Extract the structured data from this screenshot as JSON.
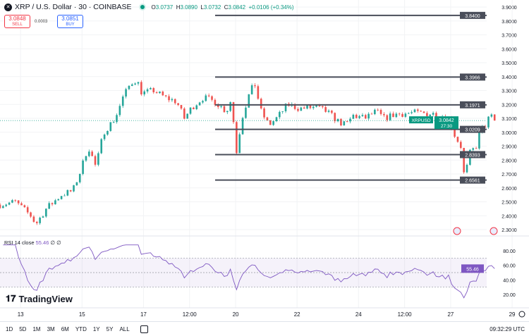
{
  "header": {
    "symbol": "XRP / U.S. Dollar · 30 · COINBASE",
    "open_label": "O",
    "open": "3.0737",
    "high_label": "H",
    "high": "3.0890",
    "low_label": "L",
    "low": "3.0732",
    "close_label": "C",
    "close": "3.0842",
    "change": "+0.0106 (+0.34%)"
  },
  "trade": {
    "sell_price": "3.0848",
    "sell_label": "SELL",
    "spread": "0.0003",
    "buy_price": "3.0851",
    "buy_label": "BUY"
  },
  "indicator": {
    "label": "RSI 14 close",
    "value": "55.46",
    "extra": "∅ ∅"
  },
  "brand": "TradingView",
  "toolbar": {
    "ranges": [
      "1D",
      "5D",
      "1M",
      "3M",
      "6M",
      "YTD",
      "1Y",
      "5Y",
      "ALL"
    ],
    "clock": "09:32:29 UTC"
  },
  "colors": {
    "up": "#26a69a",
    "down": "#ef5350",
    "rsi": "#7e57c2",
    "level": "#4a4e5a",
    "price_tag": "#089981"
  },
  "chart_data": {
    "type": "candlestick",
    "interval": "30",
    "y_ticks": [
      "3.9000",
      "3.8000",
      "3.7000",
      "3.6000",
      "3.5000",
      "3.4000",
      "3.3000",
      "3.2000",
      "3.1000",
      "3.0000",
      "2.9000",
      "2.8000",
      "2.7000",
      "2.6000",
      "2.5000",
      "2.4000",
      "2.3000"
    ],
    "ylim": [
      2.3,
      3.9
    ],
    "x_ticks": [
      {
        "label": "13",
        "day": 13
      },
      {
        "label": "15",
        "day": 15
      },
      {
        "label": "17",
        "day": 17
      },
      {
        "label": "12:00",
        "day": 18.5
      },
      {
        "label": "20",
        "day": 20
      },
      {
        "label": "22",
        "day": 22
      },
      {
        "label": "24",
        "day": 24
      },
      {
        "label": "12:00",
        "day": 25.5
      },
      {
        "label": "27",
        "day": 27
      },
      {
        "label": "29",
        "day": 29
      }
    ],
    "xlim_days": [
      12.33,
      29.55
    ],
    "price_path": [
      [
        12.33,
        2.48
      ],
      [
        12.83,
        2.5
      ],
      [
        13.33,
        2.4
      ],
      [
        13.5,
        2.34
      ],
      [
        13.83,
        2.45
      ],
      [
        14.33,
        2.55
      ],
      [
        14.7,
        2.58
      ],
      [
        14.95,
        2.72
      ],
      [
        15.2,
        2.9
      ],
      [
        15.45,
        2.75
      ],
      [
        15.7,
        3.0
      ],
      [
        16.08,
        3.1
      ],
      [
        16.33,
        3.25
      ],
      [
        16.58,
        3.35
      ],
      [
        16.78,
        3.38
      ],
      [
        16.95,
        3.28
      ],
      [
        17.33,
        3.3
      ],
      [
        17.7,
        3.25
      ],
      [
        18.08,
        3.22
      ],
      [
        18.33,
        3.1
      ],
      [
        18.58,
        3.18
      ],
      [
        18.95,
        3.25
      ],
      [
        19.33,
        3.22
      ],
      [
        19.7,
        3.15
      ],
      [
        19.83,
        3.22
      ],
      [
        19.95,
        3.05
      ],
      [
        20.02,
        2.85
      ],
      [
        20.2,
        3.1
      ],
      [
        20.45,
        3.28
      ],
      [
        20.62,
        3.35
      ],
      [
        20.83,
        3.15
      ],
      [
        21.08,
        3.05
      ],
      [
        21.33,
        3.1
      ],
      [
        21.7,
        3.2
      ],
      [
        22.08,
        3.17
      ],
      [
        22.58,
        3.18
      ],
      [
        22.95,
        3.15
      ],
      [
        23.33,
        3.08
      ],
      [
        23.58,
        3.05
      ],
      [
        23.83,
        3.12
      ],
      [
        24.2,
        3.1
      ],
      [
        24.58,
        3.15
      ],
      [
        24.83,
        3.1
      ],
      [
        25.2,
        3.13
      ],
      [
        25.83,
        3.14
      ],
      [
        26.58,
        3.13
      ],
      [
        26.95,
        3.1
      ],
      [
        27.08,
        3.0
      ],
      [
        27.33,
        2.9
      ],
      [
        27.38,
        2.68
      ],
      [
        27.53,
        2.75
      ],
      [
        27.63,
        2.85
      ],
      [
        27.83,
        2.9
      ],
      [
        27.95,
        3.0
      ],
      [
        28.13,
        3.05
      ],
      [
        28.28,
        3.12
      ],
      [
        28.45,
        3.0842
      ]
    ],
    "levels": [
      "3.8400",
      "3.3966",
      "3.1971",
      "3.0209",
      "2.8393",
      "2.6561"
    ],
    "last_price": {
      "label": "XRPUSD",
      "value": "3.0842",
      "countdown": "27:30"
    },
    "rsi": {
      "period": 14,
      "last": 55.46,
      "bands": [
        70,
        50,
        30
      ],
      "ylim": [
        0,
        90
      ],
      "y_ticks": [
        "80.00",
        "60.00",
        "40.00",
        "20.00"
      ]
    }
  }
}
